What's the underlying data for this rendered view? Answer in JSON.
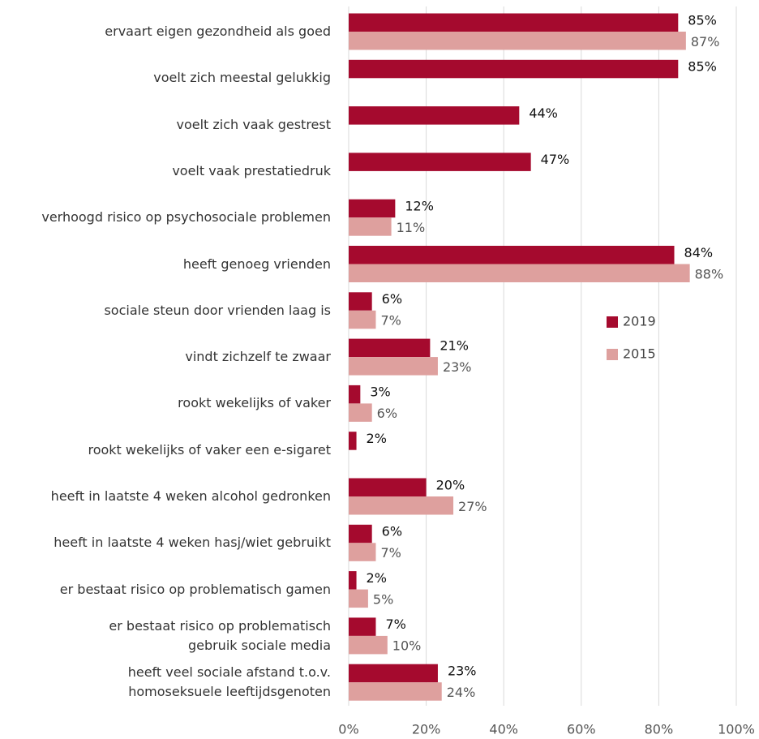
{
  "chart_data": {
    "type": "bar",
    "orientation": "horizontal",
    "categories": [
      "ervaart eigen gezondheid als goed",
      "voelt zich meestal gelukkig",
      "voelt zich vaak gestrest",
      "voelt vaak prestatiedruk",
      "verhoogd risico op psychosociale problemen",
      "heeft genoeg vrienden",
      "sociale steun door vrienden laag is",
      "vindt zichzelf te zwaar",
      "rookt wekelijks of vaker",
      "rookt wekelijks of vaker een e-sigaret",
      "heeft in laatste 4 weken alcohol gedronken",
      "heeft in laatste 4 weken hasj/wiet gebruikt",
      "er bestaat risico op problematisch gamen",
      "er bestaat risico op problematisch\ngebruik sociale media",
      "heeft veel sociale afstand t.o.v.\nhomoseksuele leeftijdsgenoten"
    ],
    "series": [
      {
        "name": "2019",
        "color": "#a50a2e",
        "values": [
          85,
          85,
          44,
          47,
          12,
          84,
          6,
          21,
          3,
          2,
          20,
          6,
          2,
          7,
          23
        ],
        "value_labels": [
          "85%",
          "85%",
          "44%",
          "47%",
          "12%",
          "84%",
          "6%",
          "21%",
          "3%",
          "2%",
          "20%",
          "6%",
          "2%",
          "7%",
          "23%"
        ]
      },
      {
        "name": "2015",
        "color": "#dea09e",
        "values": [
          87,
          null,
          null,
          null,
          11,
          88,
          7,
          23,
          6,
          null,
          27,
          7,
          5,
          10,
          24
        ],
        "value_labels": [
          "87%",
          null,
          null,
          null,
          "11%",
          "88%",
          "7%",
          "23%",
          "6%",
          null,
          "27%",
          "7%",
          "5%",
          "10%",
          "24%"
        ]
      }
    ],
    "xlim": [
      0,
      100
    ],
    "xticks": [
      {
        "value": 0,
        "label": "0%"
      },
      {
        "value": 20,
        "label": "20%"
      },
      {
        "value": 40,
        "label": "40%"
      },
      {
        "value": 60,
        "label": "60%"
      },
      {
        "value": 80,
        "label": "80%"
      },
      {
        "value": 100,
        "label": "100%"
      }
    ],
    "grid": true,
    "legend": "right"
  }
}
